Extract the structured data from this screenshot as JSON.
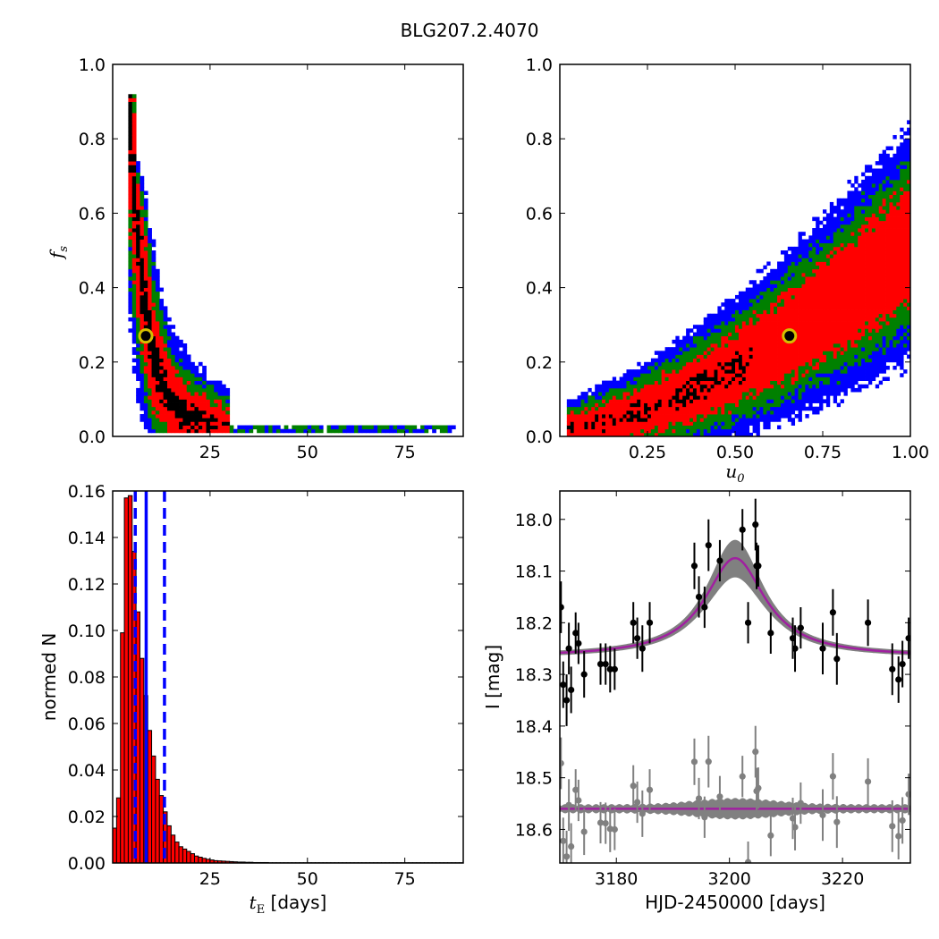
{
  "figure": {
    "title": "BLG207.2.4070"
  },
  "chart_data": [
    {
      "id": "tE_vs_fs",
      "type": "heatmap",
      "xlim": [
        0,
        90
      ],
      "ylim": [
        0.0,
        1.0
      ],
      "xticks": [
        "25",
        "50",
        "75"
      ],
      "xtick_values": [
        25,
        50,
        75
      ],
      "yticks": [
        "0.0",
        "0.2",
        "0.4",
        "0.6",
        "0.8",
        "1.0"
      ],
      "ytick_values": [
        0.0,
        0.2,
        0.4,
        0.6,
        0.8,
        1.0
      ],
      "xlabel": "",
      "ylabel": "f_s",
      "regions": [
        {
          "level": "3-sigma",
          "color": "#0000ff"
        },
        {
          "level": "2-sigma",
          "color": "#008000"
        },
        {
          "level": "1-sigma",
          "color": "#ff0000"
        },
        {
          "level": "best",
          "color": "#000000"
        }
      ],
      "best_fit_marker": {
        "x": 8.5,
        "y": 0.27,
        "face": "#000000",
        "edge": "#d4c000"
      }
    },
    {
      "id": "u0_vs_fs",
      "type": "heatmap",
      "xlim": [
        0.0,
        1.0
      ],
      "ylim": [
        0.0,
        1.0
      ],
      "xticks": [
        "0.25",
        "0.50",
        "0.75",
        "1.00"
      ],
      "xtick_values": [
        0.25,
        0.5,
        0.75,
        1.0
      ],
      "yticks": [
        "0.0",
        "0.2",
        "0.4",
        "0.6",
        "0.8",
        "1.0"
      ],
      "ytick_values": [
        0.0,
        0.2,
        0.4,
        0.6,
        0.8,
        1.0
      ],
      "xlabel": "u_0",
      "ylabel": "",
      "best_fit_marker": {
        "x": 0.655,
        "y": 0.27,
        "face": "#000000",
        "edge": "#d4c000"
      }
    },
    {
      "id": "tE_histogram",
      "type": "bar",
      "xlim": [
        0,
        90
      ],
      "ylim": [
        0.0,
        0.16
      ],
      "xticks": [
        "25",
        "50",
        "75"
      ],
      "xtick_values": [
        25,
        50,
        75
      ],
      "yticks": [
        "0.00",
        "0.02",
        "0.04",
        "0.06",
        "0.08",
        "0.10",
        "0.12",
        "0.14",
        "0.16"
      ],
      "ytick_values": [
        0.0,
        0.02,
        0.04,
        0.06,
        0.08,
        0.1,
        0.12,
        0.14,
        0.16
      ],
      "xlabel": "t_E",
      "xlabel_unit": " [days]",
      "ylabel": "normed N",
      "bar_color": "#ff0000",
      "bin_width": 1.0,
      "bins_start": 0.0,
      "values": [
        0.015,
        0.028,
        0.099,
        0.157,
        0.158,
        0.134,
        0.108,
        0.088,
        0.072,
        0.057,
        0.046,
        0.036,
        0.029,
        0.022,
        0.016,
        0.012,
        0.009,
        0.007,
        0.006,
        0.005,
        0.004,
        0.003,
        0.0025,
        0.002,
        0.0016,
        0.0013,
        0.001,
        0.0009,
        0.0008,
        0.0007,
        0.0006,
        0.0005,
        0.0004,
        0.0004,
        0.0003,
        0.0003,
        0.0002,
        0.0002,
        0.0002,
        0.0002,
        0.0001,
        0.0001,
        0.0001,
        0.0001,
        0.0001,
        0.0001,
        0.0001,
        0.0001,
        0.0001,
        0.0001,
        0.0001,
        0.0001,
        0.0001,
        0.0001,
        0.0001,
        0.0001,
        0.0001,
        0.0001,
        0.0001,
        0.0001,
        0.0001,
        0.0001,
        0.0001,
        0.0001,
        0.0001,
        0.0001,
        0.0001,
        0.0001,
        0.0001,
        0.0001,
        0.0001,
        0.0001,
        0.0001,
        0.0001,
        0.0001,
        0.0001,
        0.0001,
        0.0001,
        0.0001,
        0.0001,
        0.0001,
        0.0001,
        0.0001,
        0.0001,
        0.0001,
        0.0001,
        0.0001,
        0.0001,
        0.0001,
        0.0001
      ],
      "vlines": [
        {
          "x": 5.8,
          "style": "dashed",
          "color": "#0000ff"
        },
        {
          "x": 8.6,
          "style": "solid",
          "color": "#0000ff"
        },
        {
          "x": 13.3,
          "style": "dashed",
          "color": "#0000ff"
        }
      ]
    },
    {
      "id": "light_curve",
      "type": "scatter",
      "xlim": [
        3170,
        3232
      ],
      "ylim": [
        18.665,
        17.945
      ],
      "y_inverted": true,
      "xticks": [
        "3180",
        "3200",
        "3220"
      ],
      "xtick_values": [
        3180,
        3200,
        3220
      ],
      "yticks": [
        "18.0",
        "18.1",
        "18.2",
        "18.3",
        "18.4",
        "18.5",
        "18.6"
      ],
      "ytick_values": [
        18.0,
        18.1,
        18.2,
        18.3,
        18.4,
        18.5,
        18.6
      ],
      "xlabel": "HJD-2450000 [days]",
      "ylabel": "I [mag]",
      "model_color": "#a020a0",
      "band_color": "#808080",
      "data_color": "#000000",
      "residual_color": "#808080",
      "model": {
        "baseline": 18.266,
        "peak": 18.075,
        "t0": 3201,
        "tau": 7.5
      },
      "residual_baseline": 18.56,
      "points": [
        {
          "x": 3170.2,
          "y": 18.17,
          "err": 0.05
        },
        {
          "x": 3170.6,
          "y": 18.32,
          "err": 0.045
        },
        {
          "x": 3171.2,
          "y": 18.35,
          "err": 0.05
        },
        {
          "x": 3171.6,
          "y": 18.25,
          "err": 0.05
        },
        {
          "x": 3172.0,
          "y": 18.33,
          "err": 0.045
        },
        {
          "x": 3172.8,
          "y": 18.22,
          "err": 0.04
        },
        {
          "x": 3173.3,
          "y": 18.24,
          "err": 0.04
        },
        {
          "x": 3174.3,
          "y": 18.3,
          "err": 0.045
        },
        {
          "x": 3177.2,
          "y": 18.28,
          "err": 0.04
        },
        {
          "x": 3178.1,
          "y": 18.28,
          "err": 0.04
        },
        {
          "x": 3178.9,
          "y": 18.29,
          "err": 0.045
        },
        {
          "x": 3179.7,
          "y": 18.29,
          "err": 0.04
        },
        {
          "x": 3183.0,
          "y": 18.2,
          "err": 0.04
        },
        {
          "x": 3183.7,
          "y": 18.23,
          "err": 0.04
        },
        {
          "x": 3184.6,
          "y": 18.25,
          "err": 0.045
        },
        {
          "x": 3185.9,
          "y": 18.2,
          "err": 0.04
        },
        {
          "x": 3193.8,
          "y": 18.09,
          "err": 0.045
        },
        {
          "x": 3194.6,
          "y": 18.15,
          "err": 0.04
        },
        {
          "x": 3195.6,
          "y": 18.17,
          "err": 0.04
        },
        {
          "x": 3196.3,
          "y": 18.05,
          "err": 0.05
        },
        {
          "x": 3198.3,
          "y": 18.08,
          "err": 0.04
        },
        {
          "x": 3202.3,
          "y": 18.02,
          "err": 0.04
        },
        {
          "x": 3203.3,
          "y": 18.2,
          "err": 0.04
        },
        {
          "x": 3204.6,
          "y": 18.01,
          "err": 0.05
        },
        {
          "x": 3204.8,
          "y": 18.09,
          "err": 0.045
        },
        {
          "x": 3205.1,
          "y": 18.09,
          "err": 0.04
        },
        {
          "x": 3207.3,
          "y": 18.22,
          "err": 0.04
        },
        {
          "x": 3211.2,
          "y": 18.23,
          "err": 0.04
        },
        {
          "x": 3211.6,
          "y": 18.25,
          "err": 0.045
        },
        {
          "x": 3212.6,
          "y": 18.21,
          "err": 0.04
        },
        {
          "x": 3216.5,
          "y": 18.25,
          "err": 0.05
        },
        {
          "x": 3218.3,
          "y": 18.18,
          "err": 0.045
        },
        {
          "x": 3219.0,
          "y": 18.27,
          "err": 0.05
        },
        {
          "x": 3224.5,
          "y": 18.2,
          "err": 0.045
        },
        {
          "x": 3228.8,
          "y": 18.29,
          "err": 0.05
        },
        {
          "x": 3229.9,
          "y": 18.31,
          "err": 0.045
        },
        {
          "x": 3230.6,
          "y": 18.28,
          "err": 0.045
        },
        {
          "x": 3231.7,
          "y": 18.23,
          "err": 0.04
        }
      ]
    }
  ]
}
